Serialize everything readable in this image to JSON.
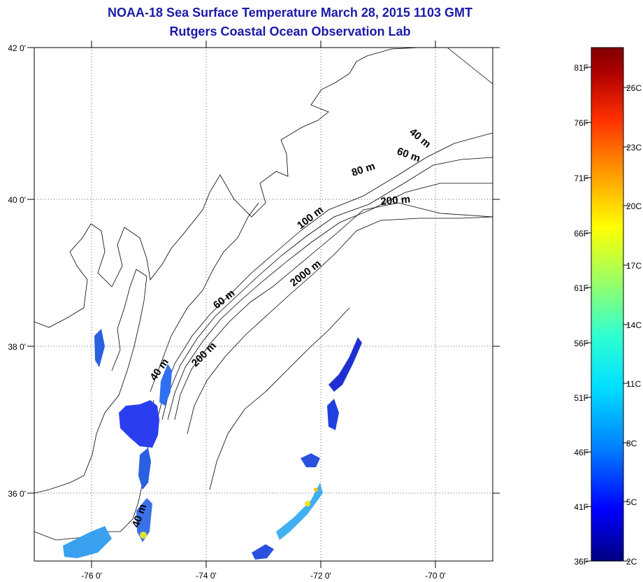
{
  "title_line1": "NOAA-18 Sea Surface Temperature March 28, 2015 1103 GMT",
  "title_line2": "Rutgers Coastal Ocean Observation Lab",
  "map": {
    "lon_range": [
      -77,
      -69
    ],
    "lat_range": [
      35,
      42
    ],
    "lon_ticks": [
      -76,
      -74,
      -72,
      -70
    ],
    "lon_tick_labels": [
      "-76 0'",
      "-74 0'",
      "-72 0'",
      "-70 0'"
    ],
    "lat_ticks": [
      42,
      40,
      38,
      36
    ],
    "lat_tick_labels": [
      "42 0'",
      "40 0'",
      "38 0'",
      "36 0'"
    ],
    "gridlines": "dotted",
    "contour_labels": [
      "40 m",
      "60 m",
      "80 m",
      "200 m",
      "100 m",
      "2000 m",
      "60 m",
      "200 m",
      "40 m",
      "40 m"
    ]
  },
  "colorbar": {
    "fahrenheit_labels": [
      "81F",
      "76F",
      "71F",
      "66F",
      "61F",
      "56F",
      "51F",
      "46F",
      "41F",
      "36F"
    ],
    "celsius_labels": [
      "26C",
      "23C",
      "20C",
      "17C",
      "14C",
      "11C",
      "8C",
      "5C",
      "2C"
    ],
    "colors": [
      "#000080",
      "#0000ff",
      "#0080ff",
      "#00e0ff",
      "#30ffd0",
      "#a0ff60",
      "#ffff00",
      "#ffa000",
      "#ff3000",
      "#b00000",
      "#800000"
    ]
  }
}
